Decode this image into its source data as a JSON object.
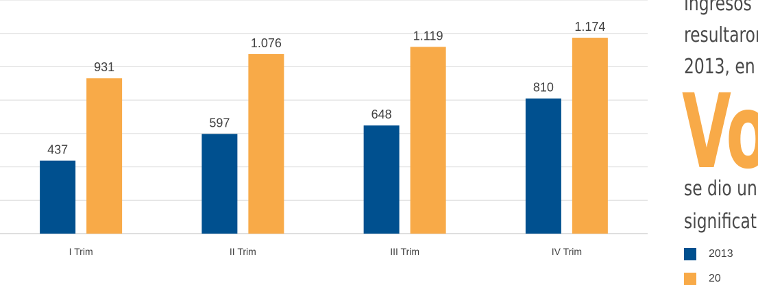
{
  "chart_data": {
    "type": "bar",
    "categories": [
      "I Trim",
      "II Trim",
      "III Trim",
      "IV Trim"
    ],
    "series": [
      {
        "name": "2013",
        "values": [
          437,
          597,
          648,
          810
        ],
        "labels": [
          "437",
          "597",
          "648",
          "810"
        ],
        "color": "#00508f"
      },
      {
        "name": "",
        "values": [
          931,
          1076,
          1119,
          1174
        ],
        "labels": [
          "931",
          "1.076",
          "1.119",
          "1.174"
        ],
        "color": "#f8aa48"
      }
    ],
    "ylim": [
      0,
      1400
    ],
    "grid": true,
    "legend": "bottom-right"
  },
  "side_text": {
    "line1": "Ingresos (",
    "line2": "resultaron",
    "line3": "2013, en",
    "highlight": "Vo",
    "line4": "se dio un",
    "line5": "significati"
  },
  "legend": {
    "item1": "2013",
    "item2": "20"
  }
}
